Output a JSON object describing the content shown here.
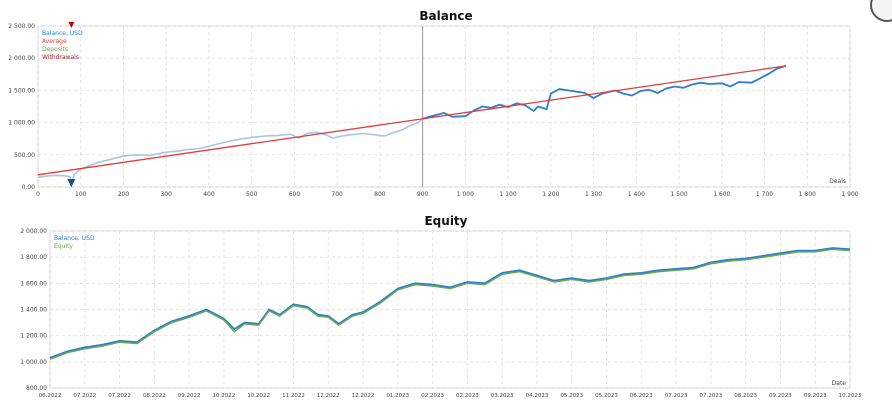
{
  "charts": {
    "balance": {
      "chart_data": {
        "type": "line",
        "title": "Balance",
        "xlabel": "Deals",
        "ylabel": "",
        "xlim": [
          0,
          1900
        ],
        "ylim": [
          0,
          2500
        ],
        "x_ticks": [
          0,
          100,
          200,
          300,
          400,
          500,
          600,
          700,
          800,
          900,
          1000,
          1100,
          1200,
          1300,
          1400,
          1500,
          1600,
          1700,
          1800,
          1900
        ],
        "x_tick_labels": [
          "0",
          "100",
          "200",
          "300",
          "400",
          "500",
          "600",
          "700",
          "800",
          "900",
          "1 000",
          "1 100",
          "1 200",
          "1 300",
          "1 400",
          "1 500",
          "1 600",
          "1 700",
          "1 800",
          "1 900"
        ],
        "y_ticks": [
          0,
          500,
          1000,
          1500,
          2000,
          2500
        ],
        "y_tick_labels": [
          "0.00",
          "500.00",
          "1 000.00",
          "1 500.00",
          "2 000.00",
          "2 500.00"
        ],
        "grid": true,
        "legend_position": "top-left",
        "legend": [
          {
            "name": "Balance, USD",
            "color": "#2a7fcf"
          },
          {
            "name": "Average",
            "color": "#e53b3b"
          },
          {
            "name": "Deposits",
            "color": "#6aa84f"
          },
          {
            "name": "Withdrawals",
            "color": "#a61c1c"
          }
        ],
        "divider_x": 900,
        "series": [
          {
            "name": "Balance, USD",
            "color": "#2a7fcf",
            "history_color": "#a8c6e0",
            "points": [
              [
                0,
                150
              ],
              [
                20,
                170
              ],
              [
                40,
                180
              ],
              [
                60,
                175
              ],
              [
                75,
                160
              ],
              [
                78,
                0
              ],
              [
                85,
                200
              ],
              [
                100,
                280
              ],
              [
                120,
                330
              ],
              [
                140,
                380
              ],
              [
                170,
                430
              ],
              [
                200,
                480
              ],
              [
                230,
                500
              ],
              [
                260,
                490
              ],
              [
                300,
                540
              ],
              [
                330,
                560
              ],
              [
                350,
                580
              ],
              [
                380,
                600
              ],
              [
                410,
                650
              ],
              [
                440,
                700
              ],
              [
                470,
                740
              ],
              [
                500,
                770
              ],
              [
                530,
                790
              ],
              [
                560,
                800
              ],
              [
                590,
                820
              ],
              [
                610,
                760
              ],
              [
                630,
                830
              ],
              [
                650,
                850
              ],
              [
                670,
                820
              ],
              [
                690,
                760
              ],
              [
                710,
                790
              ],
              [
                730,
                810
              ],
              [
                760,
                830
              ],
              [
                790,
                810
              ],
              [
                810,
                790
              ],
              [
                830,
                840
              ],
              [
                850,
                880
              ],
              [
                870,
                950
              ],
              [
                890,
                1000
              ],
              [
                900,
                1060
              ],
              [
                920,
                1100
              ],
              [
                950,
                1150
              ],
              [
                970,
                1090
              ],
              [
                1000,
                1100
              ],
              [
                1020,
                1190
              ],
              [
                1040,
                1250
              ],
              [
                1060,
                1230
              ],
              [
                1080,
                1280
              ],
              [
                1100,
                1240
              ],
              [
                1120,
                1300
              ],
              [
                1140,
                1270
              ],
              [
                1160,
                1180
              ],
              [
                1170,
                1250
              ],
              [
                1190,
                1210
              ],
              [
                1200,
                1450
              ],
              [
                1220,
                1520
              ],
              [
                1250,
                1490
              ],
              [
                1280,
                1460
              ],
              [
                1300,
                1380
              ],
              [
                1320,
                1450
              ],
              [
                1350,
                1500
              ],
              [
                1370,
                1450
              ],
              [
                1390,
                1420
              ],
              [
                1410,
                1490
              ],
              [
                1430,
                1510
              ],
              [
                1450,
                1460
              ],
              [
                1470,
                1530
              ],
              [
                1490,
                1560
              ],
              [
                1510,
                1540
              ],
              [
                1530,
                1590
              ],
              [
                1550,
                1620
              ],
              [
                1570,
                1600
              ],
              [
                1600,
                1610
              ],
              [
                1620,
                1560
              ],
              [
                1640,
                1630
              ],
              [
                1670,
                1620
              ],
              [
                1690,
                1690
              ],
              [
                1710,
                1760
              ],
              [
                1730,
                1840
              ],
              [
                1750,
                1880
              ]
            ]
          },
          {
            "name": "Average",
            "color": "#e53b3b",
            "points": [
              [
                0,
                190
              ],
              [
                1750,
                1880
              ]
            ]
          }
        ]
      }
    },
    "equity": {
      "chart_data": {
        "type": "line",
        "title": "Equity",
        "xlabel": "Date",
        "ylabel": "",
        "x_categories": [
          "06.2022",
          "07.2022",
          "07.2022",
          "08.2022",
          "09.2022",
          "10.2022",
          "10.2022",
          "11.2022",
          "12.2022",
          "12.2022",
          "01.2023",
          "02.2023",
          "02.2023",
          "03.2023",
          "04.2023",
          "05.2023",
          "05.2023",
          "06.2023",
          "07.2023",
          "07.2023",
          "08.2023",
          "09.2023",
          "09.2023",
          "10.2023"
        ],
        "ylim": [
          800,
          2000
        ],
        "y_ticks": [
          800,
          1000,
          1200,
          1400,
          1600,
          1800,
          2000
        ],
        "y_tick_labels": [
          "800.00",
          "1 000.00",
          "1 200.00",
          "1 400.00",
          "1 600.00",
          "1 800.00",
          "2 000.00"
        ],
        "grid": true,
        "legend_position": "top-left",
        "legend": [
          {
            "name": "Balance, USD",
            "color": "#2a7fcf"
          },
          {
            "name": "Equity",
            "color": "#6aa84f"
          }
        ],
        "series": [
          {
            "name": "Balance, USD",
            "color": "#2a7fcf",
            "points": [
              [
                0,
                1030
              ],
              [
                0.5,
                1080
              ],
              [
                1,
                1110
              ],
              [
                1.5,
                1130
              ],
              [
                2,
                1160
              ],
              [
                2.5,
                1150
              ],
              [
                3,
                1240
              ],
              [
                3.5,
                1310
              ],
              [
                4,
                1350
              ],
              [
                4.5,
                1400
              ],
              [
                5,
                1330
              ],
              [
                5.3,
                1250
              ],
              [
                5.6,
                1300
              ],
              [
                6,
                1290
              ],
              [
                6.3,
                1400
              ],
              [
                6.6,
                1360
              ],
              [
                7,
                1440
              ],
              [
                7.4,
                1420
              ],
              [
                7.7,
                1360
              ],
              [
                8,
                1350
              ],
              [
                8.3,
                1290
              ],
              [
                8.7,
                1360
              ],
              [
                9,
                1380
              ],
              [
                9.5,
                1460
              ],
              [
                10,
                1560
              ],
              [
                10.5,
                1600
              ],
              [
                11,
                1590
              ],
              [
                11.5,
                1570
              ],
              [
                12,
                1610
              ],
              [
                12.5,
                1600
              ],
              [
                13,
                1680
              ],
              [
                13.5,
                1700
              ],
              [
                14,
                1660
              ],
              [
                14.5,
                1620
              ],
              [
                15,
                1640
              ],
              [
                15.5,
                1620
              ],
              [
                16,
                1640
              ],
              [
                16.5,
                1670
              ],
              [
                17,
                1680
              ],
              [
                17.5,
                1700
              ],
              [
                18,
                1710
              ],
              [
                18.5,
                1720
              ],
              [
                19,
                1760
              ],
              [
                19.5,
                1780
              ],
              [
                20,
                1790
              ],
              [
                20.5,
                1810
              ],
              [
                21,
                1830
              ],
              [
                21.5,
                1850
              ],
              [
                22,
                1850
              ],
              [
                22.5,
                1870
              ],
              [
                23,
                1860
              ]
            ]
          },
          {
            "name": "Equity",
            "color": "#6aa84f",
            "points": [
              [
                0,
                1020
              ],
              [
                0.5,
                1070
              ],
              [
                1,
                1100
              ],
              [
                1.5,
                1120
              ],
              [
                2,
                1150
              ],
              [
                2.5,
                1140
              ],
              [
                3,
                1230
              ],
              [
                3.5,
                1300
              ],
              [
                4,
                1340
              ],
              [
                4.5,
                1390
              ],
              [
                5,
                1320
              ],
              [
                5.3,
                1230
              ],
              [
                5.6,
                1290
              ],
              [
                6,
                1280
              ],
              [
                6.3,
                1390
              ],
              [
                6.6,
                1350
              ],
              [
                7,
                1430
              ],
              [
                7.4,
                1410
              ],
              [
                7.7,
                1350
              ],
              [
                8,
                1340
              ],
              [
                8.3,
                1280
              ],
              [
                8.7,
                1350
              ],
              [
                9,
                1370
              ],
              [
                9.5,
                1450
              ],
              [
                10,
                1550
              ],
              [
                10.5,
                1590
              ],
              [
                11,
                1580
              ],
              [
                11.5,
                1560
              ],
              [
                12,
                1600
              ],
              [
                12.5,
                1590
              ],
              [
                13,
                1670
              ],
              [
                13.5,
                1690
              ],
              [
                14,
                1650
              ],
              [
                14.5,
                1610
              ],
              [
                15,
                1630
              ],
              [
                15.5,
                1610
              ],
              [
                16,
                1630
              ],
              [
                16.5,
                1660
              ],
              [
                17,
                1670
              ],
              [
                17.5,
                1690
              ],
              [
                18,
                1700
              ],
              [
                18.5,
                1710
              ],
              [
                19,
                1750
              ],
              [
                19.5,
                1770
              ],
              [
                20,
                1780
              ],
              [
                20.5,
                1800
              ],
              [
                21,
                1820
              ],
              [
                21.5,
                1840
              ],
              [
                22,
                1840
              ],
              [
                22.5,
                1860
              ],
              [
                23,
                1850
              ]
            ]
          }
        ]
      }
    }
  }
}
